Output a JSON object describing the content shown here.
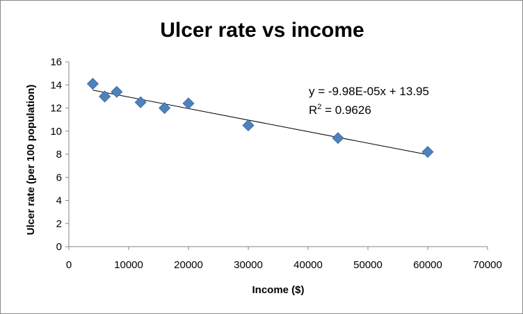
{
  "chart_data": {
    "type": "scatter",
    "title": "Ulcer rate vs income",
    "xlabel": "Income ($)",
    "ylabel": "Ulcer rate (per 100 population)",
    "xlim": [
      0,
      70000
    ],
    "ylim": [
      0,
      16
    ],
    "x_ticks": [
      "0",
      "10000",
      "20000",
      "30000",
      "40000",
      "50000",
      "60000",
      "70000"
    ],
    "y_ticks": [
      "0",
      "2",
      "4",
      "6",
      "8",
      "10",
      "12",
      "14",
      "16"
    ],
    "grid": false,
    "legend": "none",
    "marker_color": "#4F81BD",
    "trendline_color": "#000000",
    "points": [
      {
        "x": 4000,
        "y": 14.1
      },
      {
        "x": 6000,
        "y": 13.0
      },
      {
        "x": 8000,
        "y": 13.4
      },
      {
        "x": 12000,
        "y": 12.5
      },
      {
        "x": 16000,
        "y": 12.0
      },
      {
        "x": 20000,
        "y": 12.4
      },
      {
        "x": 30000,
        "y": 10.5
      },
      {
        "x": 45000,
        "y": 9.4
      },
      {
        "x": 60000,
        "y": 8.2
      }
    ],
    "trendline": {
      "type": "linear",
      "slope": -9.98e-05,
      "intercept": 13.95,
      "equation_label": "y = -9.98E-05x + 13.95",
      "r_squared_prefix": "R",
      "r_squared_exponent": "2",
      "r_squared_value": " = 0.9626"
    }
  }
}
